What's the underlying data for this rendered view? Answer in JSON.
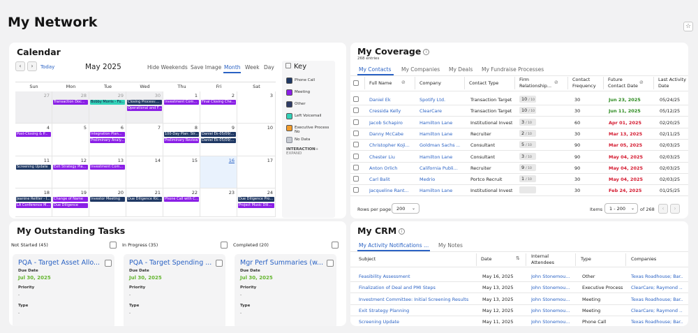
{
  "page": {
    "title": "My Network"
  },
  "calendar": {
    "title": "Calendar",
    "today": "Today",
    "month": "May 2025",
    "views": [
      "Hide Weekends",
      "Save Image",
      "Month",
      "Week",
      "Day"
    ],
    "weekdays": [
      "Sun",
      "Mon",
      "Tue",
      "Wed",
      "Thu",
      "Fri",
      "Sat"
    ],
    "weeks": [
      [
        "27",
        "28",
        "29",
        "30",
        "1",
        "2",
        "3"
      ],
      [
        "4",
        "5",
        "6",
        "7",
        "8",
        "9",
        "10"
      ],
      [
        "11",
        "12",
        "13",
        "14",
        "15",
        "16",
        "17"
      ],
      [
        "18",
        "19",
        "20",
        "21",
        "22",
        "23",
        "24"
      ]
    ],
    "events": [
      {
        "label": "Transaction Doc...",
        "w": 1,
        "d": 1,
        "r": 0,
        "kind": "meeting"
      },
      {
        "label": "Bobby Morris - Fo...",
        "w": 1,
        "d": 2,
        "r": 0,
        "kind": "voicemail"
      },
      {
        "label": "Closing Process:...",
        "w": 1,
        "d": 3,
        "r": 0,
        "kind": "phone"
      },
      {
        "label": "Operational and F...",
        "w": 1,
        "d": 3,
        "r": 1,
        "kind": "meeting"
      },
      {
        "label": "Investment Com...",
        "w": 1,
        "d": 4,
        "r": 0,
        "kind": "meeting"
      },
      {
        "label": "Final Closing Che...",
        "w": 1,
        "d": 5,
        "r": 0,
        "kind": "meeting"
      },
      {
        "label": "Post-Closing & P...",
        "w": 2,
        "d": 0,
        "r": 0,
        "kind": "meeting"
      },
      {
        "label": "Integration Plan...",
        "w": 2,
        "d": 2,
        "r": 0,
        "kind": "meeting"
      },
      {
        "label": "Preliminary Analy...",
        "w": 2,
        "d": 2,
        "r": 1,
        "kind": "meeting"
      },
      {
        "label": "100-Day Plan: Str...",
        "w": 2,
        "d": 4,
        "r": 0,
        "kind": "phone"
      },
      {
        "label": "Preliminary Review",
        "w": 2,
        "d": 4,
        "r": 1,
        "kind": "meeting"
      },
      {
        "label": "Daniel Ek-05/09/...",
        "w": 2,
        "d": 5,
        "r": 0,
        "kind": "phone"
      },
      {
        "label": "Daniel Ek-05/09/...",
        "w": 2,
        "d": 5,
        "r": 1,
        "kind": "phone"
      },
      {
        "label": "Screening Update",
        "w": 3,
        "d": 0,
        "r": 0,
        "kind": "phone"
      },
      {
        "label": "Exit Strategy Pla...",
        "w": 3,
        "d": 1,
        "r": 0,
        "kind": "meeting"
      },
      {
        "label": "Investment Com...",
        "w": 3,
        "d": 2,
        "r": 0,
        "kind": "meeting"
      },
      {
        "label": "Jeanine Reitter - I...",
        "w": 4,
        "d": 0,
        "r": 0,
        "kind": "phone"
      },
      {
        "label": "LA Conference M...",
        "w": 4,
        "d": 0,
        "r": 1,
        "kind": "meeting"
      },
      {
        "label": "Change of Name",
        "w": 4,
        "d": 1,
        "r": 0,
        "kind": "meeting"
      },
      {
        "label": "Due Diligence",
        "w": 4,
        "d": 1,
        "r": 1,
        "kind": "meeting"
      },
      {
        "label": "Investor Meeting",
        "w": 4,
        "d": 2,
        "r": 0,
        "kind": "phone"
      },
      {
        "label": "Due Diligence Kic...",
        "w": 4,
        "d": 3,
        "r": 0,
        "kind": "phone"
      },
      {
        "label": "Phone Call with C...",
        "w": 4,
        "d": 4,
        "r": 0,
        "kind": "meeting"
      },
      {
        "label": "Due Diligence Pro...",
        "w": 4,
        "d": 6,
        "r": 0,
        "kind": "phone"
      },
      {
        "label": "Project Music Dili...",
        "w": 4,
        "d": 6,
        "r": 1,
        "kind": "meeting"
      }
    ],
    "key": {
      "title": "Key",
      "items": [
        {
          "label": "Phone Call",
          "color": "#1f3864"
        },
        {
          "label": "Meeting",
          "color": "#8a1fe6"
        },
        {
          "label": "Other",
          "color": "#2f3d66"
        },
        {
          "label": "Left Voicemail",
          "color": "#33d1b8"
        },
        {
          "label": "Executive Process No",
          "color": "#f29c2b"
        },
        {
          "label": "No Data",
          "color": "#8a8f99"
        }
      ],
      "footer": "INTERACTION",
      "expand": "+ EXPAND"
    },
    "colors": {
      "phone": "#1f3864",
      "meeting": "#8a1fe6",
      "voicemail": "#33d1b8"
    }
  },
  "coverage": {
    "title": "My Coverage",
    "entries": "268 entries",
    "tabs": [
      "My Contacts",
      "My Companies",
      "My Deals",
      "My Fundraise Processes"
    ],
    "headers": {
      "name": "Full Name",
      "company": "Company",
      "type": "Contact Type",
      "firm1": "Firm",
      "firm2": "Relationship...",
      "freq1": "Contact",
      "freq2": "Frequency",
      "future1": "Future",
      "future2": "Contact Date",
      "last1": "Last Activity",
      "last2": "Date"
    },
    "rows": [
      {
        "name": "Daniel Ek",
        "company": "Spotify Ltd.",
        "type": "Transaction Target",
        "score": "10",
        "freq": "30",
        "future": "Jun 23, 2025",
        "fcolor": "green",
        "last": "05/24/25"
      },
      {
        "name": "Cressida Kelly",
        "company": "ClearCare",
        "type": "Transaction Target",
        "score": "10",
        "freq": "30",
        "future": "Jun 11, 2025",
        "fcolor": "green",
        "last": "05/12/25"
      },
      {
        "name": "Jacob Schapiro",
        "company": "Hamilton Lane",
        "type": "Institutional Invest",
        "score": "3",
        "freq": "60",
        "future": "Apr 01, 2025",
        "fcolor": "red",
        "last": "02/20/25"
      },
      {
        "name": "Danny McCabe",
        "company": "Hamilton Lane",
        "type": "Recruiter",
        "score": "2",
        "freq": "30",
        "future": "Mar 13, 2025",
        "fcolor": "red",
        "last": "02/11/25"
      },
      {
        "name": "Christopher Koji...",
        "company": "Goldman Sachs ...",
        "type": "Consultant",
        "score": "5",
        "freq": "90",
        "future": "Mar 05, 2025",
        "fcolor": "red",
        "last": "02/03/25"
      },
      {
        "name": "Chester Liu",
        "company": "Hamilton Lane",
        "type": "Consultant",
        "score": "3",
        "freq": "90",
        "future": "May 04, 2025",
        "fcolor": "red",
        "last": "02/03/25"
      },
      {
        "name": "Anton Orlich",
        "company": "California Publi...",
        "type": "Recruiter",
        "score": "9",
        "freq": "90",
        "future": "May 04, 2025",
        "fcolor": "red",
        "last": "02/03/25"
      },
      {
        "name": "Carl Balit",
        "company": "Medrio",
        "type": "Portco Recruit",
        "score": "1",
        "freq": "30",
        "future": "May 04, 2025",
        "fcolor": "red",
        "last": "02/03/25"
      },
      {
        "name": "Jacqueline Rant...",
        "company": "Hamilton Lane",
        "type": "Institutional Invest",
        "score": "",
        "freq": "30",
        "future": "Feb 24, 2025",
        "fcolor": "red",
        "last": "01/25/25"
      }
    ],
    "score_suffix": "/ 10",
    "rows_per_page_label": "Rows per page",
    "rows_per_page": "200",
    "items_label": "Items",
    "items_range": "1 - 200",
    "items_total": "of 268"
  },
  "tasks": {
    "title": "My Outstanding Tasks",
    "columns": [
      {
        "status": "Not Started (45)",
        "title": "PQA - Target Asset Allo...",
        "due_label": "Due Date",
        "due": "Jul 30, 2025",
        "priority_label": "Priority",
        "priority": "-",
        "type_label": "Type",
        "type": "-"
      },
      {
        "status": "In Progress (35)",
        "title": "PQA - Target Spending ...",
        "due_label": "Due Date",
        "due": "Jul 30, 2025",
        "priority_label": "Priority",
        "priority": "-",
        "type_label": "Type",
        "type": "-"
      },
      {
        "status": "Completed (20)",
        "title": "Mgr Perf Summaries (w...",
        "due_label": "Due Date",
        "due": "Jul 30, 2025",
        "priority_label": "Priority",
        "priority": "-",
        "type_label": "Type",
        "type": "-"
      }
    ]
  },
  "crm": {
    "title": "My CRM",
    "tabs": [
      "My Activity Notifications ...",
      "My Notes"
    ],
    "headers": {
      "subject": "Subject",
      "date": "Date",
      "att1": "Internal",
      "att2": "Attendees",
      "type": "Type",
      "companies": "Companies"
    },
    "rows": [
      {
        "subject": "Feasibility Assessment",
        "date": "May 16, 2025",
        "att": "John Stonemou...",
        "type": "Other",
        "companies": "Texas Roadhouse; Bar..."
      },
      {
        "subject": "Finalization of Deal and PMI Steps",
        "date": "May 13, 2025",
        "att": "John Stonemou...",
        "type": "Executive Process I",
        "companies": "ClearCare; Raymond ..."
      },
      {
        "subject": "Investment Committee: Initial Screening Results",
        "date": "May 13, 2025",
        "att": "John Stonemou...",
        "type": "Meeting",
        "companies": "Texas Roadhouse; Bar..."
      },
      {
        "subject": "Exit Strategy Planning",
        "date": "May 12, 2025",
        "att": "John Stonemou...",
        "type": "Meeting",
        "companies": "ClearCare; Raymond ..."
      },
      {
        "subject": "Screening Update",
        "date": "May 11, 2025",
        "att": "John Stonemou...",
        "type": "Phone Call",
        "companies": "Texas Roadhouse; Bar..."
      }
    ]
  }
}
